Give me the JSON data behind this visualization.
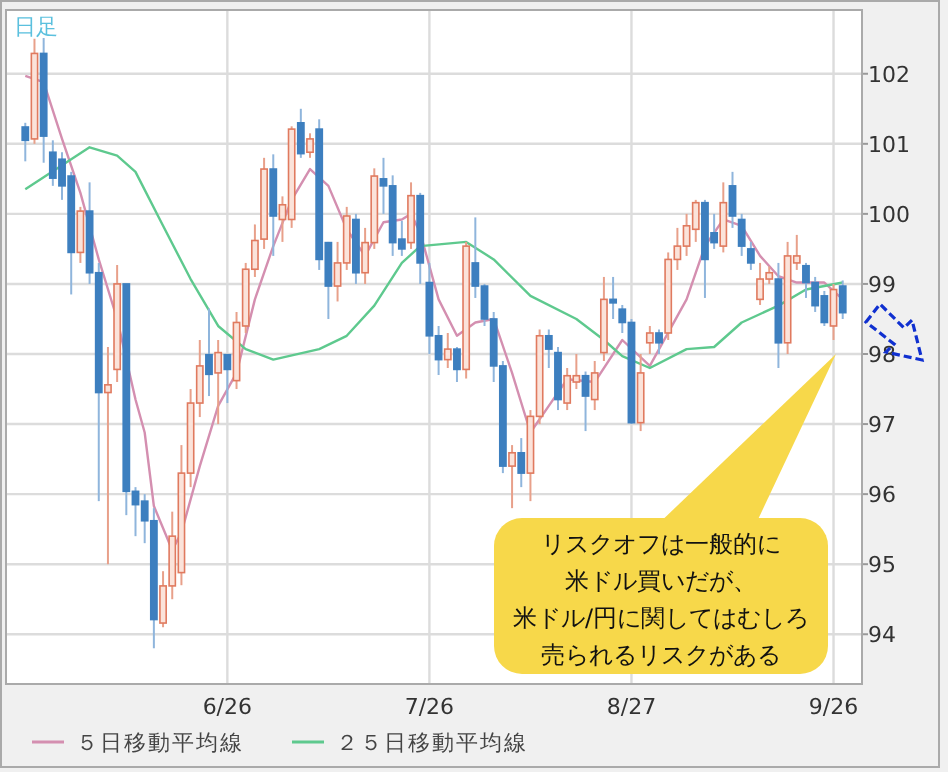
{
  "chart_data": {
    "type": "candlestick",
    "title": "日足",
    "categories": [
      null,
      null,
      null,
      null,
      null,
      null,
      null,
      null,
      null,
      null,
      null,
      null,
      null,
      null,
      null,
      null,
      null,
      null,
      null,
      null,
      null,
      null,
      "6/26",
      null,
      null,
      null,
      null,
      null,
      null,
      null,
      null,
      null,
      null,
      null,
      null,
      null,
      null,
      null,
      null,
      null,
      null,
      null,
      null,
      null,
      "7/26",
      null,
      null,
      null,
      null,
      null,
      null,
      null,
      null,
      null,
      null,
      null,
      null,
      null,
      null,
      null,
      null,
      null,
      null,
      null,
      null,
      null,
      "8/27",
      null,
      null,
      null,
      null,
      null,
      null,
      null,
      null,
      null,
      null,
      null,
      null,
      null,
      null,
      null,
      null,
      null,
      null,
      null,
      null,
      null,
      "9/26",
      null
    ],
    "ohlc": [
      [
        101.24,
        101.3,
        100.75,
        101.05
      ],
      [
        101.07,
        102.5,
        101.0,
        102.29
      ],
      [
        102.29,
        102.51,
        100.73,
        101.11
      ],
      [
        100.88,
        101.05,
        100.4,
        100.51
      ],
      [
        100.78,
        100.88,
        100.2,
        100.4
      ],
      [
        100.54,
        100.6,
        98.85,
        99.45
      ],
      [
        99.45,
        100.1,
        99.3,
        100.04
      ],
      [
        100.04,
        100.45,
        99.0,
        99.16
      ],
      [
        99.16,
        99.3,
        95.9,
        97.45
      ],
      [
        97.45,
        98.1,
        95.0,
        97.56
      ],
      [
        97.78,
        99.27,
        97.6,
        99.0
      ],
      [
        99.0,
        99.0,
        95.7,
        96.04
      ],
      [
        96.04,
        96.1,
        95.4,
        95.85
      ],
      [
        95.9,
        96.0,
        95.3,
        95.62
      ],
      [
        95.62,
        95.8,
        93.8,
        94.21
      ],
      [
        94.16,
        94.9,
        94.1,
        94.69
      ],
      [
        94.69,
        95.75,
        94.5,
        95.4
      ],
      [
        94.88,
        96.7,
        94.7,
        96.3
      ],
      [
        96.3,
        97.5,
        96.1,
        97.3
      ],
      [
        97.3,
        98.2,
        97.1,
        97.83
      ],
      [
        97.99,
        98.65,
        97.4,
        97.71
      ],
      [
        97.73,
        98.2,
        97.0,
        98.02
      ],
      [
        97.99,
        98.0,
        97.3,
        97.78
      ],
      [
        97.62,
        98.6,
        97.5,
        98.45
      ],
      [
        98.4,
        99.3,
        98.3,
        99.21
      ],
      [
        99.21,
        99.85,
        99.1,
        99.62
      ],
      [
        99.64,
        100.8,
        99.5,
        100.64
      ],
      [
        100.64,
        100.85,
        99.4,
        99.97
      ],
      [
        99.92,
        100.25,
        99.6,
        100.13
      ],
      [
        99.92,
        101.25,
        99.8,
        101.21
      ],
      [
        101.3,
        101.5,
        100.8,
        100.86
      ],
      [
        100.88,
        101.15,
        100.8,
        101.07
      ],
      [
        101.21,
        101.35,
        99.2,
        99.35
      ],
      [
        99.59,
        99.6,
        98.5,
        98.97
      ],
      [
        98.97,
        99.6,
        98.75,
        99.3
      ],
      [
        99.3,
        100.1,
        99.2,
        99.97
      ],
      [
        99.92,
        100.0,
        99.0,
        99.16
      ],
      [
        99.16,
        99.8,
        99.0,
        99.59
      ],
      [
        99.59,
        100.65,
        99.5,
        100.54
      ],
      [
        100.5,
        100.8,
        100.0,
        100.4
      ],
      [
        100.4,
        100.55,
        99.4,
        99.59
      ],
      [
        99.64,
        99.9,
        99.4,
        99.5
      ],
      [
        99.59,
        100.45,
        99.5,
        100.26
      ],
      [
        100.26,
        100.3,
        99.0,
        99.3
      ],
      [
        99.02,
        99.3,
        98.0,
        98.26
      ],
      [
        98.26,
        98.4,
        97.7,
        97.92
      ],
      [
        97.92,
        98.3,
        97.8,
        98.07
      ],
      [
        98.07,
        98.1,
        97.6,
        97.78
      ],
      [
        97.78,
        99.6,
        97.65,
        99.54
      ],
      [
        99.3,
        99.95,
        98.8,
        98.97
      ],
      [
        98.97,
        99.0,
        98.4,
        98.5
      ],
      [
        98.5,
        98.6,
        97.6,
        97.83
      ],
      [
        97.83,
        97.9,
        96.3,
        96.4
      ],
      [
        96.4,
        96.7,
        95.8,
        96.59
      ],
      [
        96.59,
        96.8,
        96.1,
        96.3
      ],
      [
        96.3,
        97.2,
        95.9,
        97.11
      ],
      [
        97.11,
        98.35,
        97.0,
        98.26
      ],
      [
        98.26,
        98.35,
        97.8,
        98.07
      ],
      [
        98.02,
        98.1,
        97.2,
        97.35
      ],
      [
        97.3,
        97.8,
        97.2,
        97.69
      ],
      [
        97.6,
        98.0,
        97.5,
        97.69
      ],
      [
        97.69,
        97.75,
        96.9,
        97.4
      ],
      [
        97.35,
        97.9,
        97.2,
        97.73
      ],
      [
        98.02,
        99.1,
        97.9,
        98.78
      ],
      [
        98.78,
        99.1,
        98.5,
        98.73
      ],
      [
        98.64,
        98.7,
        98.3,
        98.45
      ],
      [
        98.45,
        98.5,
        97.0,
        97.02
      ],
      [
        97.02,
        98.0,
        96.9,
        97.73
      ],
      [
        98.16,
        98.4,
        98.0,
        98.3
      ],
      [
        98.3,
        98.35,
        98.0,
        98.16
      ],
      [
        98.3,
        99.45,
        98.2,
        99.35
      ],
      [
        99.35,
        99.8,
        99.2,
        99.54
      ],
      [
        99.54,
        100.0,
        99.4,
        99.83
      ],
      [
        99.78,
        100.2,
        99.6,
        100.16
      ],
      [
        100.16,
        100.2,
        98.8,
        99.35
      ],
      [
        99.73,
        100.0,
        99.5,
        99.59
      ],
      [
        99.54,
        100.45,
        99.45,
        100.16
      ],
      [
        100.4,
        100.6,
        99.8,
        99.97
      ],
      [
        99.92,
        100.0,
        99.4,
        99.54
      ],
      [
        99.5,
        99.6,
        99.2,
        99.3
      ],
      [
        98.78,
        99.3,
        98.7,
        99.07
      ],
      [
        99.07,
        99.25,
        99.0,
        99.16
      ],
      [
        99.07,
        99.3,
        97.8,
        98.16
      ],
      [
        98.16,
        99.6,
        98.0,
        99.4
      ],
      [
        99.3,
        99.7,
        99.2,
        99.4
      ],
      [
        99.26,
        99.3,
        98.8,
        99.02
      ],
      [
        99.02,
        99.1,
        98.6,
        98.69
      ],
      [
        98.83,
        98.9,
        98.4,
        98.45
      ],
      [
        98.4,
        99.0,
        98.2,
        98.92
      ],
      [
        98.97,
        99.05,
        98.5,
        98.59
      ]
    ],
    "series": [
      {
        "name": "５日移動平均線",
        "type": "line",
        "color": "#d48fb0",
        "values": [
          101.97,
          null,
          101.88,
          null,
          101.07,
          null,
          100.3,
          null,
          99.35,
          null,
          98.5,
          null,
          97.35,
          96.88,
          95.83,
          null,
          95.2,
          95.45,
          null,
          96.4,
          null,
          97.26,
          null,
          97.73,
          null,
          98.78,
          null,
          99.54,
          null,
          100.2,
          null,
          100.64,
          null,
          100.4,
          null,
          99.78,
          null,
          99.4,
          null,
          99.88,
          null,
          99.92,
          100.0,
          99.73,
          null,
          98.78,
          null,
          98.26,
          null,
          98.45,
          null,
          98.5,
          null,
          97.73,
          null,
          96.88,
          null,
          97.26,
          null,
          97.64,
          null,
          null,
          97.6,
          null,
          null,
          98.2,
          null,
          null,
          97.83,
          null,
          null,
          null,
          98.78,
          null,
          99.54,
          null,
          99.92,
          null,
          99.83,
          null,
          99.4,
          null,
          99.11,
          null,
          99.02,
          null,
          null,
          99.02,
          null,
          98.78
        ]
      },
      {
        "name": "２５日移動平均線",
        "type": "line",
        "color": "#5ec98e",
        "values": [
          100.35,
          null,
          null,
          null,
          null,
          null,
          null,
          100.95,
          null,
          null,
          100.83,
          null,
          100.6,
          null,
          null,
          99.83,
          null,
          null,
          99.07,
          null,
          null,
          98.4,
          null,
          null,
          98.07,
          null,
          null,
          97.92,
          null,
          null,
          null,
          null,
          98.07,
          null,
          null,
          98.26,
          null,
          null,
          98.69,
          null,
          null,
          99.3,
          null,
          99.54,
          null,
          null,
          null,
          null,
          99.6,
          null,
          null,
          99.35,
          null,
          null,
          null,
          98.83,
          null,
          null,
          null,
          null,
          98.5,
          null,
          null,
          98.2,
          null,
          97.97,
          null,
          null,
          97.8,
          null,
          null,
          null,
          98.07,
          null,
          null,
          98.1,
          null,
          null,
          98.45,
          null,
          null,
          null,
          98.69,
          null,
          null,
          98.92,
          null,
          null,
          null,
          99.02
        ]
      }
    ],
    "ylim": [
      93.29,
      102.91
    ],
    "yticks": [
      94,
      95,
      96,
      97,
      98,
      99,
      100,
      101,
      102
    ],
    "grid": true,
    "legend": "bottom",
    "annotations": [
      "リスクオフは一般的に",
      "米ドル買いだが、",
      "米ドル/円に関してはむしろ",
      "売られるリスクがある"
    ]
  }
}
